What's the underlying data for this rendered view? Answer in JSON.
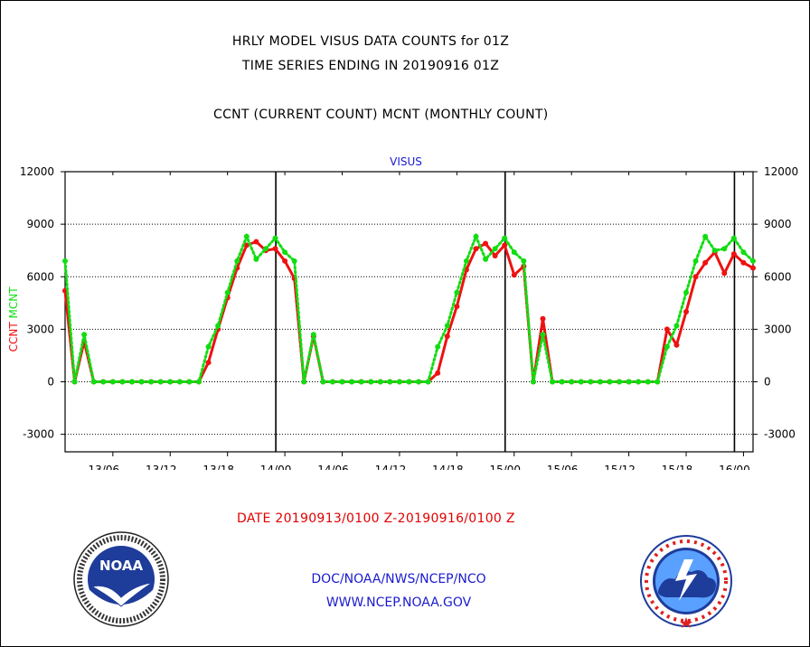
{
  "titles": {
    "line1": "HRLY MODEL VISUS DATA COUNTS for 01Z",
    "line2": "TIME SERIES ENDING IN 20190916 01Z",
    "line3": "CCNT (CURRENT COUNT) MCNT (MONTHLY COUNT)"
  },
  "date_range": "DATE 20190913/0100 Z-20190916/0100 Z",
  "footer": {
    "org": "DOC/NOAA/NWS/NCEP/NCO",
    "url": "WWW.NCEP.NOAA.GOV"
  },
  "logos": {
    "left": {
      "icon": "noaa-logo",
      "text": "NOAA"
    },
    "right": {
      "icon": "national-weather-service-logo"
    }
  },
  "colors": {
    "ccnt": "#ee1111",
    "mcnt": "#11dd11",
    "title_blue": "#1a1ad0",
    "grid": "#000000"
  },
  "chart_data": {
    "type": "line",
    "title": "VISUS",
    "ylabel_left": [
      "CCNT",
      "MCNT"
    ],
    "ylim": [
      -4000,
      12000
    ],
    "yticks": [
      -3000,
      0,
      3000,
      6000,
      9000,
      12000
    ],
    "ytick_labels": [
      "-3000",
      "0",
      "3000",
      "6000",
      "9000",
      "12000"
    ],
    "x_start": "13/01",
    "x_end": "16/01",
    "xticks": [
      {
        "label": "13/06",
        "hour": 5
      },
      {
        "label": "13/12",
        "hour": 11
      },
      {
        "label": "13/18",
        "hour": 17
      },
      {
        "label": "14/00",
        "hour": 23
      },
      {
        "label": "14/06",
        "hour": 29
      },
      {
        "label": "14/12",
        "hour": 35
      },
      {
        "label": "14/18",
        "hour": 41
      },
      {
        "label": "15/00",
        "hour": 47
      },
      {
        "label": "15/06",
        "hour": 53
      },
      {
        "label": "15/12",
        "hour": 59
      },
      {
        "label": "15/18",
        "hour": 65
      },
      {
        "label": "16/00",
        "hour": 71
      }
    ],
    "day_boundaries": [
      "14/00",
      "15/00",
      "16/00"
    ],
    "grid": true,
    "series": [
      {
        "name": "CCNT",
        "color": "#ee1111",
        "values": [
          5200,
          0,
          2300,
          0,
          0,
          0,
          0,
          0,
          0,
          0,
          0,
          0,
          0,
          0,
          0,
          1100,
          3000,
          4800,
          6500,
          7800,
          8000,
          7500,
          7600,
          6900,
          5900,
          0,
          2600,
          0,
          0,
          0,
          0,
          0,
          0,
          0,
          0,
          0,
          0,
          0,
          0,
          500,
          2600,
          4300,
          6400,
          7600,
          7900,
          7200,
          7800,
          6100,
          6600,
          0,
          3600,
          0,
          0,
          0,
          0,
          0,
          0,
          0,
          0,
          0,
          0,
          0,
          0,
          3000,
          2100,
          4000,
          6000,
          6800,
          7400,
          6200,
          7300,
          6800,
          6500
        ]
      },
      {
        "name": "MCNT",
        "color": "#11dd11",
        "values": [
          6900,
          0,
          2700,
          0,
          0,
          0,
          0,
          0,
          0,
          0,
          0,
          0,
          0,
          0,
          0,
          2000,
          3200,
          5100,
          6900,
          8300,
          7000,
          7600,
          8200,
          7400,
          6900,
          0,
          2700,
          0,
          0,
          0,
          0,
          0,
          0,
          0,
          0,
          0,
          0,
          0,
          0,
          2000,
          3200,
          5100,
          6900,
          8300,
          7000,
          7600,
          8200,
          7400,
          6900,
          0,
          2700,
          0,
          0,
          0,
          0,
          0,
          0,
          0,
          0,
          0,
          0,
          0,
          0,
          2000,
          3200,
          5100,
          6900,
          8300,
          7500,
          7600,
          8200,
          7400,
          6900
        ]
      }
    ]
  }
}
